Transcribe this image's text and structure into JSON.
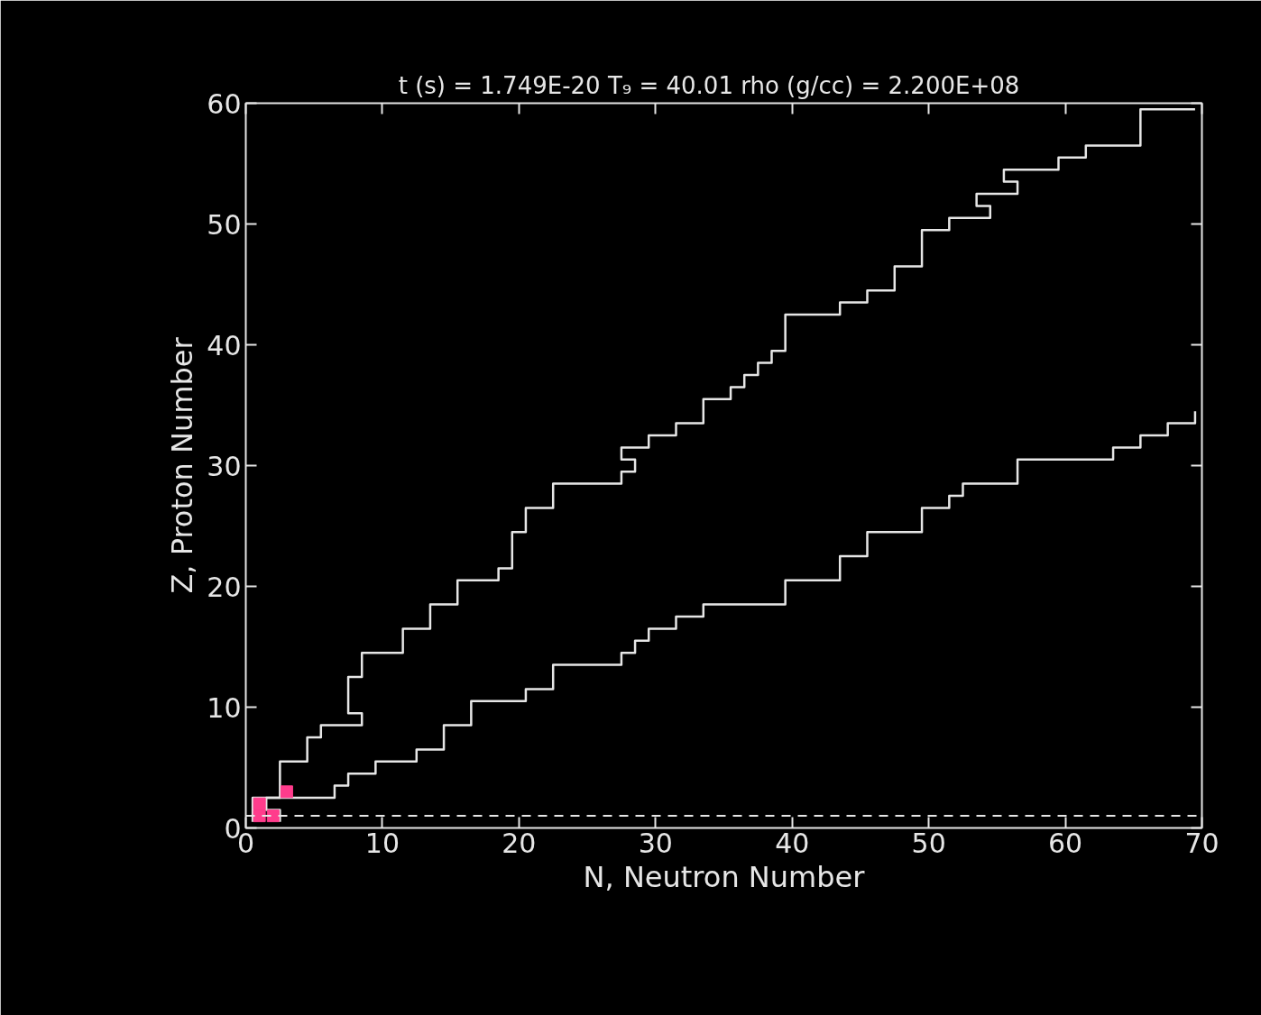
{
  "chart_data": {
    "type": "line",
    "title": "t (s) = 1.749E-20    T₉ = 40.01  rho (g/cc) = 2.200E+08",
    "xlabel": "N, Neutron Number",
    "ylabel": "Z, Proton Number",
    "xlim": [
      0,
      70
    ],
    "ylim": [
      0,
      60
    ],
    "xticks": [
      0,
      10,
      20,
      30,
      40,
      50,
      60,
      70
    ],
    "yticks": [
      0,
      10,
      20,
      30,
      40,
      50,
      60
    ],
    "grid": false,
    "series": [
      {
        "color": "#e6e6e6",
        "x": [
          0.5,
          0.5,
          2.5,
          2.5,
          4.5,
          4.5,
          5.5,
          5.5,
          8.5,
          8.5,
          7.5,
          7.5,
          8.5,
          8.5,
          11.5,
          11.5,
          13.5,
          13.5,
          15.5,
          15.5,
          18.5,
          18.5,
          19.5,
          19.5,
          20.5,
          20.5,
          22.5,
          22.5,
          27.5,
          27.5,
          28.5,
          28.5,
          27.5,
          27.5,
          29.5,
          29.5,
          31.5,
          31.5,
          33.5,
          33.5,
          35.5,
          35.5,
          36.5,
          36.5,
          37.5,
          37.5,
          38.5,
          38.5,
          39.5,
          39.5,
          43.5,
          43.5,
          45.5,
          45.5,
          47.5,
          47.5,
          49.5,
          49.5,
          51.5,
          51.5,
          54.5,
          54.5,
          53.5,
          53.5,
          56.5,
          56.5,
          55.5,
          55.5,
          59.5,
          59.5,
          61.5,
          61.5,
          65.5,
          65.5,
          69.5
        ],
        "values": [
          0.5,
          2.5,
          2.5,
          5.5,
          5.5,
          7.5,
          7.5,
          8.5,
          8.5,
          9.5,
          9.5,
          12.5,
          12.5,
          14.5,
          14.5,
          16.5,
          16.5,
          18.5,
          18.5,
          20.5,
          20.5,
          21.5,
          21.5,
          24.5,
          24.5,
          26.5,
          26.5,
          28.5,
          28.5,
          29.5,
          29.5,
          30.5,
          30.5,
          31.5,
          31.5,
          32.5,
          32.5,
          33.5,
          33.5,
          35.5,
          35.5,
          36.5,
          36.5,
          37.5,
          37.5,
          38.5,
          38.5,
          39.5,
          39.5,
          42.5,
          42.5,
          43.5,
          43.5,
          44.5,
          44.5,
          46.5,
          46.5,
          49.5,
          49.5,
          50.5,
          50.5,
          51.5,
          51.5,
          52.5,
          52.5,
          53.5,
          53.5,
          54.5,
          54.5,
          55.5,
          55.5,
          56.5,
          56.5,
          59.5,
          59.5
        ]
      },
      {
        "color": "#e6e6e6",
        "x": [
          2.5,
          2.5,
          1.5,
          1.5,
          6.5,
          6.5,
          7.5,
          7.5,
          9.5,
          9.5,
          12.5,
          12.5,
          14.5,
          14.5,
          16.5,
          16.5,
          20.5,
          20.5,
          22.5,
          22.5,
          27.5,
          27.5,
          28.5,
          28.5,
          29.5,
          29.5,
          31.5,
          31.5,
          33.5,
          33.5,
          35.5,
          35.5,
          39.5,
          39.5,
          43.5,
          43.5,
          45.5,
          45.5,
          49.5,
          49.5,
          51.5,
          51.5,
          52.5,
          52.5,
          56.5,
          56.5,
          63.5,
          63.5,
          65.5,
          65.5,
          67.5,
          67.5,
          69.5,
          69.5
        ],
        "values": [
          0.5,
          1.5,
          1.5,
          2.5,
          2.5,
          3.5,
          3.5,
          4.5,
          4.5,
          5.5,
          5.5,
          6.5,
          6.5,
          8.5,
          8.5,
          10.5,
          10.5,
          11.5,
          11.5,
          13.5,
          13.5,
          14.5,
          14.5,
          15.5,
          15.5,
          16.5,
          16.5,
          17.5,
          17.5,
          18.5,
          18.5,
          18.5,
          18.5,
          20.5,
          20.5,
          22.5,
          22.5,
          24.5,
          24.5,
          26.5,
          26.5,
          27.5,
          27.5,
          28.5,
          28.5,
          30.5,
          30.5,
          31.5,
          31.5,
          32.5,
          32.5,
          33.5,
          33.5,
          34.5
        ]
      },
      {
        "type": "scatter",
        "marker": "square",
        "color": "#ff3c8c",
        "x": [
          1,
          1,
          2,
          3
        ],
        "values": [
          1,
          2,
          1,
          3
        ]
      }
    ],
    "ref_lines": [
      {
        "axis": "y",
        "value": 1,
        "color": "#e6e6e6",
        "line_style": "dashed"
      }
    ]
  }
}
